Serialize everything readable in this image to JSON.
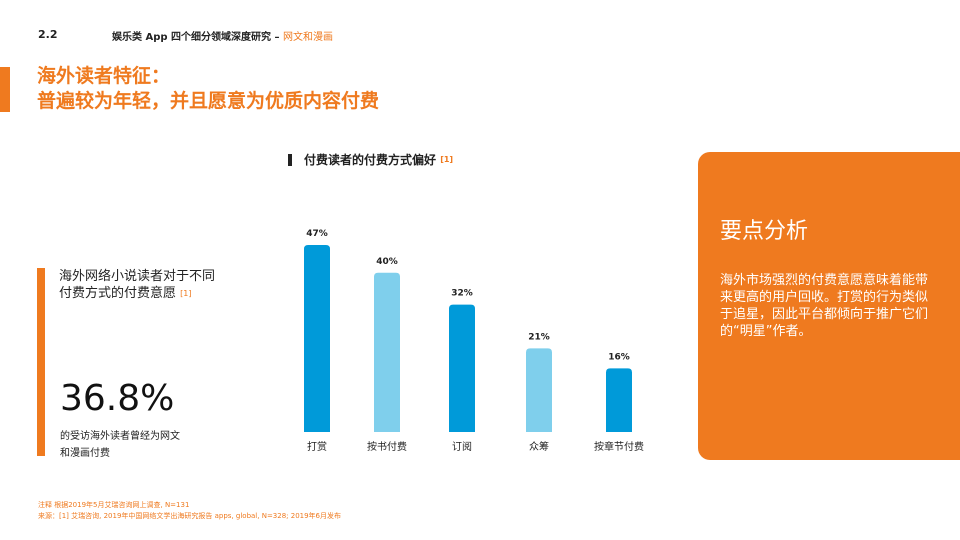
{
  "header": {
    "section": "2.2",
    "breadcrumb": "娱乐类 App 四个细分领域深度研究 – ",
    "breadcrumb_highlight": "网文和漫画"
  },
  "title": {
    "line1": "海外读者特征：",
    "line2": "普遍较为年轻，并且愿意为优质内容付费"
  },
  "stat": {
    "heading_line1": "海外网络小说读者对于不同",
    "heading_line2": "付费方式的付费意愿",
    "ref": "[1]",
    "value": "36.8%",
    "desc_line1": "的受访海外读者曾经为网文",
    "desc_line2": "和漫画付费"
  },
  "chart_title": "付费读者的付费方式偏好",
  "chart_ref": "[1]",
  "chart_data": {
    "type": "bar",
    "categories": [
      "打赏",
      "按书付费",
      "订阅",
      "众筹",
      "按章节付费"
    ],
    "values": [
      47,
      40,
      32,
      21,
      16
    ],
    "labels": [
      "47%",
      "40%",
      "32%",
      "21%",
      "16%"
    ],
    "colors": [
      "#009ad9",
      "#7fcfec",
      "#009ad9",
      "#7fcfec",
      "#009ad9"
    ],
    "ylim": [
      0,
      50
    ],
    "grid": false
  },
  "panel": {
    "title": "要点分析",
    "text": "海外市场强烈的付费意愿意味着能带来更高的用户回收。打赏的行为类似于追星，因此平台都倾向于推广它们的“明星”作者。",
    "color": "#ef7a1f"
  },
  "notes": {
    "line1": "注释 根据2019年5月艾瑞咨询网上调查, N=131",
    "line2": "来源：[1] 艾瑞咨询, 2019年中国网络文学出海研究报告 apps, global, N=328; 2019年6月发布"
  }
}
